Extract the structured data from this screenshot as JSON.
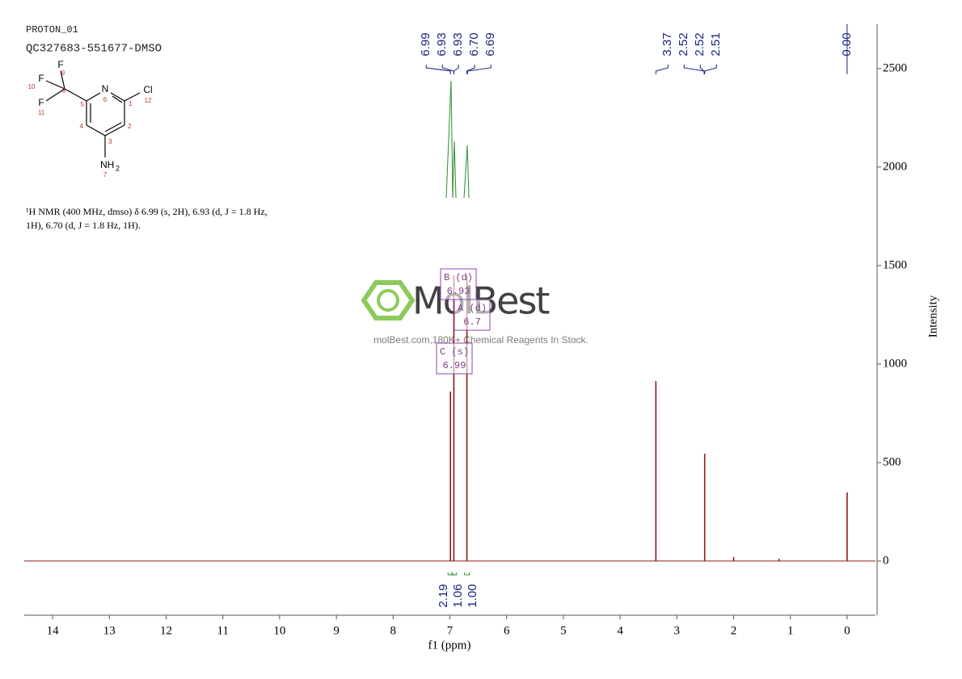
{
  "chart_data": {
    "type": "nmr",
    "header": [
      "PROTON_01",
      "QC327683-551677-DMSO"
    ],
    "structure": [
      "F",
      "9",
      "10",
      "F",
      "8",
      "F",
      "11",
      "5",
      "N",
      "6",
      "1",
      "Cl",
      "12",
      "4",
      "2",
      "3",
      "NH",
      "2",
      "7"
    ],
    "annotation": [
      "¹H NMR (400 MHz, dmso) δ 6.99 (s, 2H), 6.93 (d, J = 1.8 Hz,",
      "1H), 6.70 (d, J = 1.8 Hz, 1H)."
    ],
    "watermark": [
      "MolBest",
      "molBest.com,180K+ Chemical Reagents In Stock."
    ],
    "x_label": "f1 (ppm)",
    "y_label": "Intensity",
    "xlim": [
      14.5,
      -0.5
    ],
    "ylim": [
      -275,
      2725
    ],
    "xticks": [
      14,
      13,
      12,
      11,
      10,
      9,
      8,
      7,
      6,
      5,
      4,
      3,
      2,
      1,
      0
    ],
    "yticks": [
      0,
      500,
      1000,
      1500,
      2000,
      2500
    ],
    "color": "#8b1a1a",
    "peaks": {
      "x": [
        6.99,
        6.93,
        6.7,
        3.37,
        2.51,
        2.0,
        1.2,
        0.0
      ],
      "values": [
        860,
        1450,
        1450,
        914,
        545,
        20,
        12,
        348
      ]
    },
    "peak_labels": [
      {
        "value": 6.99,
        "label": "6.99"
      },
      {
        "value": 6.93,
        "label": "6.93"
      },
      {
        "value": 6.93,
        "label": "6.93"
      },
      {
        "value": 6.7,
        "label": "6.70"
      },
      {
        "value": 6.69,
        "label": "6.69"
      },
      {
        "value": 3.37,
        "label": "3.37"
      },
      {
        "value": 2.52,
        "label": "2.52"
      },
      {
        "value": 2.52,
        "label": "2.52"
      },
      {
        "value": 2.51,
        "label": "2.51"
      },
      {
        "value": 0,
        "label": "0.00"
      }
    ],
    "integrals": {
      "x": [
        6.99,
        6.93,
        6.7
      ],
      "values": [
        2.19,
        1.06,
        1
      ],
      "value_labels": [
        "2.19",
        "1.06",
        "1.00"
      ]
    },
    "multiplets": [
      {
        "label": "B (d)",
        "shift": 6.93
      },
      {
        "label": "A (d)",
        "shift": 6.7
      },
      {
        "label": "C (s)",
        "shift": 6.99
      }
    ]
  }
}
